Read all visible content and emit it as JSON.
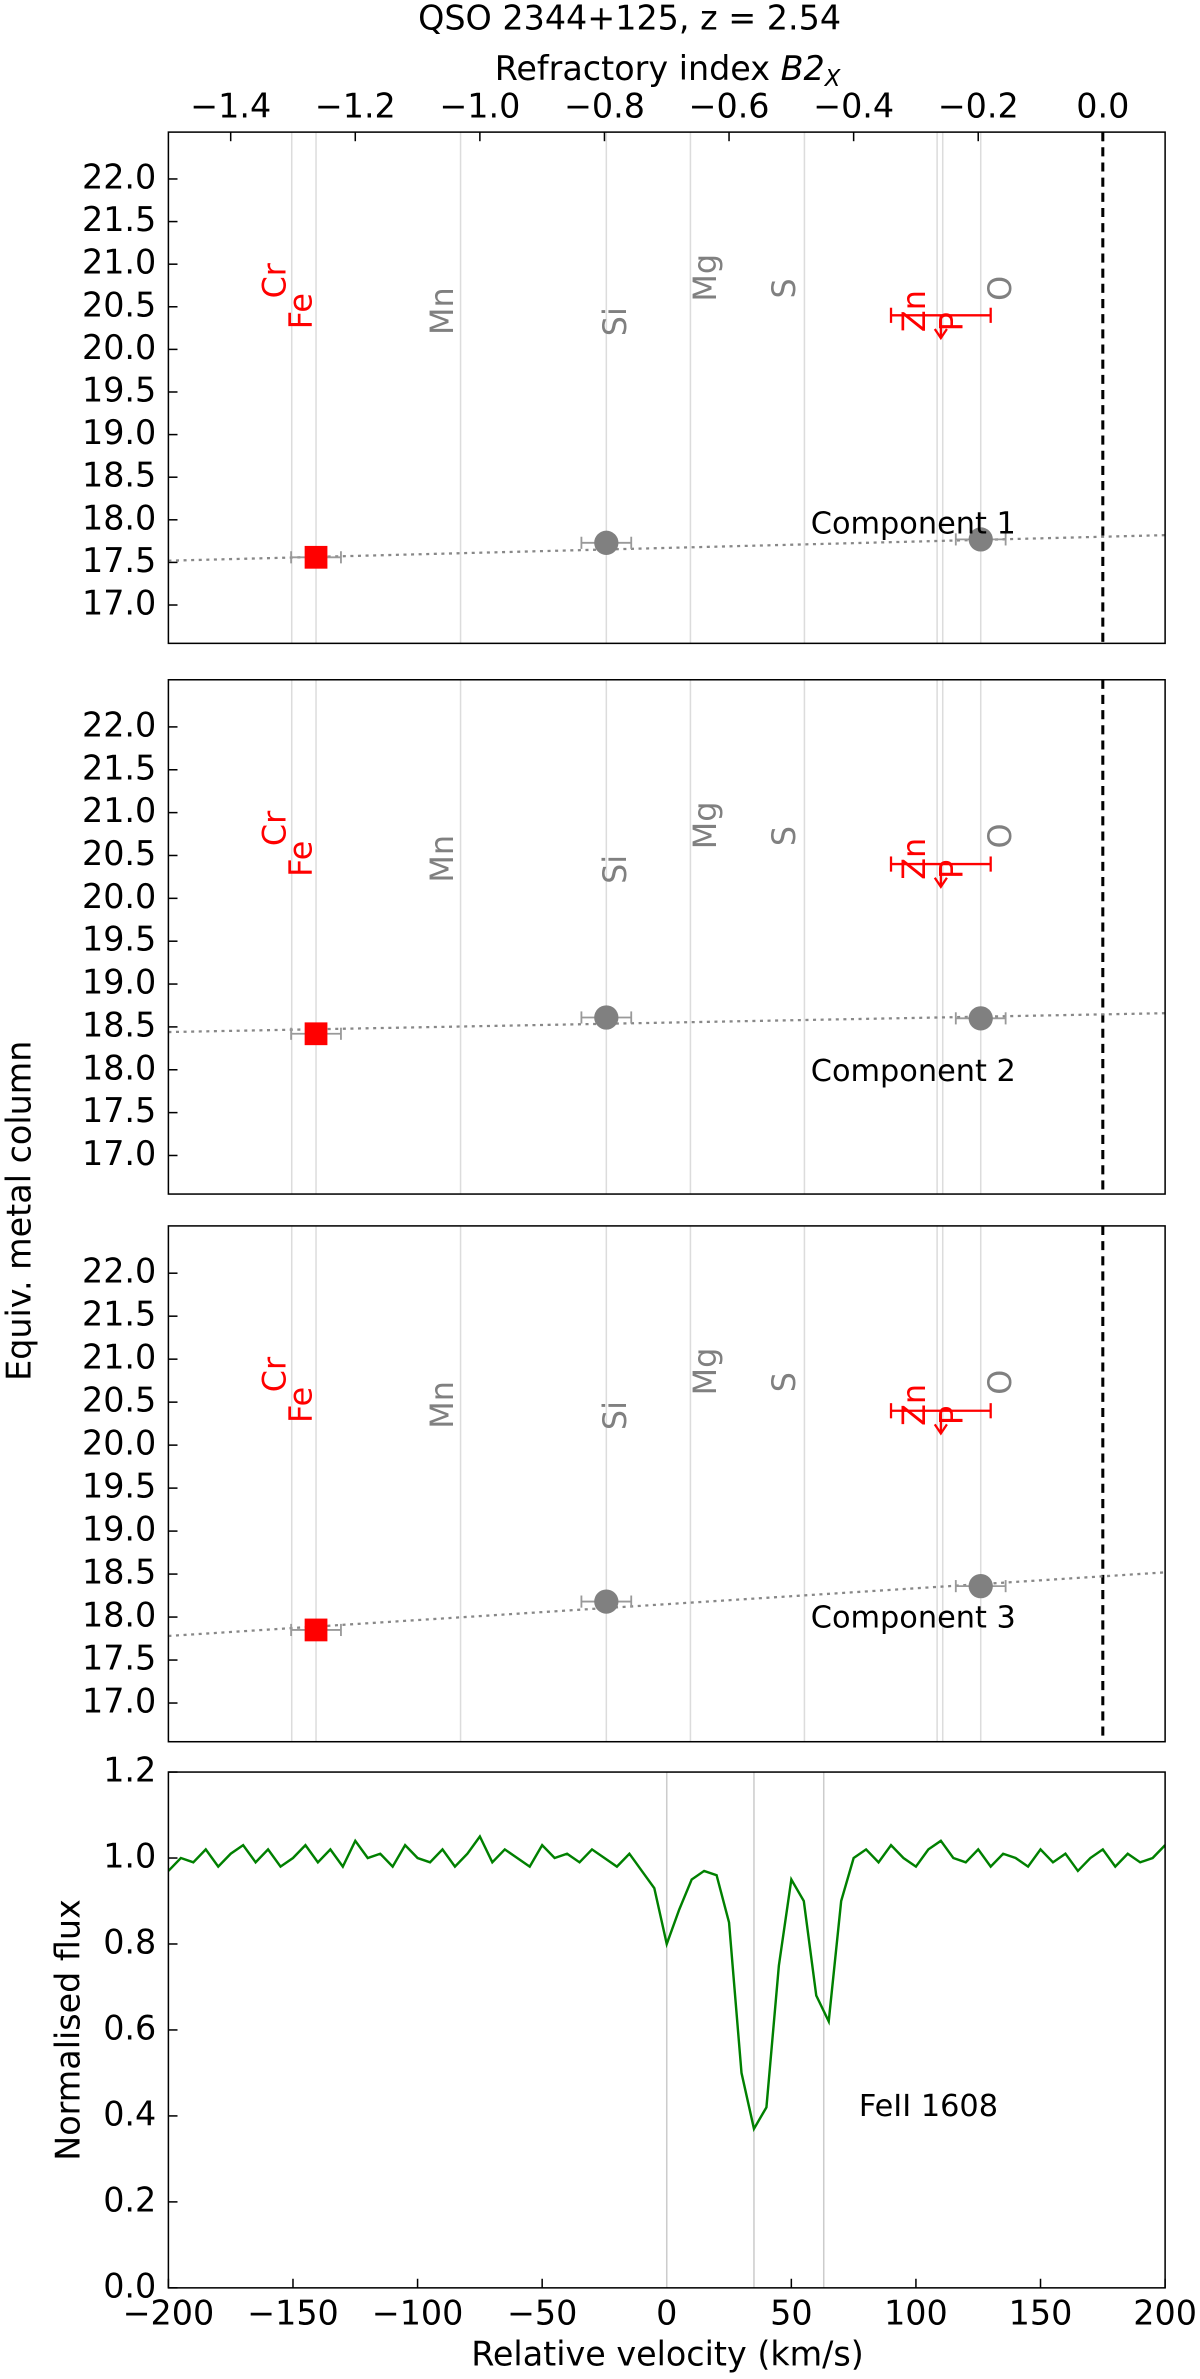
{
  "chart_data": [
    {
      "type": "scatter",
      "title": "QSO 2344+125, z = 2.54",
      "xlabel": [
        "Refractory index ",
        "B2",
        "X"
      ],
      "xlim": [
        -1.5,
        0.1
      ],
      "xticks": [
        {
          "value": -1.4,
          "label": "−1.4"
        },
        {
          "value": -1.2,
          "label": "−1.2"
        },
        {
          "value": -1.0,
          "label": "−1.0"
        },
        {
          "value": -0.8,
          "label": "−0.8"
        },
        {
          "value": -0.6,
          "label": "−0.6"
        },
        {
          "value": -0.4,
          "label": "−0.4"
        },
        {
          "value": -0.2,
          "label": "−0.2"
        },
        {
          "value": 0,
          "label": "0.0"
        }
      ],
      "ylim": [
        16.55,
        22.55
      ],
      "yticks": [
        {
          "value": 17,
          "label": "17.0"
        },
        {
          "value": 17.5,
          "label": "17.5"
        },
        {
          "value": 18,
          "label": "18.0"
        },
        {
          "value": 18.5,
          "label": "18.5"
        },
        {
          "value": 19,
          "label": "19.0"
        },
        {
          "value": 19.5,
          "label": "19.5"
        },
        {
          "value": 20,
          "label": "20.0"
        },
        {
          "value": 20.5,
          "label": "20.5"
        },
        {
          "value": 21,
          "label": "21.0"
        },
        {
          "value": 21.5,
          "label": "21.5"
        },
        {
          "value": 22,
          "label": "22.0"
        }
      ],
      "elements": {
        "names": [
          "Cr",
          "Fe",
          "Mn",
          "Si",
          "Mg",
          "S",
          "Zn",
          "P",
          "O"
        ],
        "x": [
          -1.302,
          -1.263,
          -1.031,
          -0.797,
          -0.662,
          -0.479,
          -0.266,
          -0.257,
          -0.196
        ],
        "colors": [
          "#ff0000",
          "#ff0000",
          "#808080",
          "#808080",
          "#808080",
          "#808080",
          "#ff0000",
          "#ff0000",
          "#808080"
        ]
      },
      "refline": 0,
      "x": [
        -1.263,
        -0.797,
        -0.196
      ],
      "values": [
        17.56,
        17.73,
        17.77
      ],
      "xerr": [
        0.04,
        0.04,
        0.04
      ],
      "markers": [
        "square",
        "circle",
        "circle"
      ],
      "colors": [
        "#ff0000",
        "#808080",
        "#808080"
      ],
      "fit": {
        "x": [
          -1.5,
          0.1
        ],
        "values": [
          17.52,
          17.82
        ]
      },
      "limit": {
        "x": -0.26,
        "value": 20.4,
        "xerr": 0.08,
        "color": "#ff0000"
      },
      "annotation": "Component 1"
    },
    {
      "type": "scatter",
      "ylabel": "Equiv. metal column",
      "xlim": [
        -1.5,
        0.1
      ],
      "ylim": [
        16.55,
        22.55
      ],
      "yticks": [
        {
          "value": 17,
          "label": "17.0"
        },
        {
          "value": 17.5,
          "label": "17.5"
        },
        {
          "value": 18,
          "label": "18.0"
        },
        {
          "value": 18.5,
          "label": "18.5"
        },
        {
          "value": 19,
          "label": "19.0"
        },
        {
          "value": 19.5,
          "label": "19.5"
        },
        {
          "value": 20,
          "label": "20.0"
        },
        {
          "value": 20.5,
          "label": "20.5"
        },
        {
          "value": 21,
          "label": "21.0"
        },
        {
          "value": 21.5,
          "label": "21.5"
        },
        {
          "value": 22,
          "label": "22.0"
        }
      ],
      "refline": 0,
      "x": [
        -1.263,
        -0.797,
        -0.196
      ],
      "values": [
        18.42,
        18.61,
        18.6
      ],
      "xerr": [
        0.04,
        0.04,
        0.04
      ],
      "markers": [
        "square",
        "circle",
        "circle"
      ],
      "colors": [
        "#ff0000",
        "#808080",
        "#808080"
      ],
      "fit": {
        "x": [
          -1.5,
          0.1
        ],
        "values": [
          18.44,
          18.66
        ]
      },
      "limit": {
        "x": -0.26,
        "value": 20.4,
        "xerr": 0.08,
        "color": "#ff0000"
      },
      "annotation": "Component 2"
    },
    {
      "type": "scatter",
      "xlim": [
        -1.5,
        0.1
      ],
      "ylim": [
        16.55,
        22.55
      ],
      "yticks": [
        {
          "value": 17,
          "label": "17.0"
        },
        {
          "value": 17.5,
          "label": "17.5"
        },
        {
          "value": 18,
          "label": "18.0"
        },
        {
          "value": 18.5,
          "label": "18.5"
        },
        {
          "value": 19,
          "label": "19.0"
        },
        {
          "value": 19.5,
          "label": "19.5"
        },
        {
          "value": 20,
          "label": "20.0"
        },
        {
          "value": 20.5,
          "label": "20.5"
        },
        {
          "value": 21,
          "label": "21.0"
        },
        {
          "value": 21.5,
          "label": "21.5"
        },
        {
          "value": 22,
          "label": "22.0"
        }
      ],
      "refline": 0,
      "x": [
        -1.263,
        -0.797,
        -0.196
      ],
      "values": [
        17.85,
        18.18,
        18.36
      ],
      "xerr": [
        0.04,
        0.04,
        0.04
      ],
      "markers": [
        "square",
        "circle",
        "circle"
      ],
      "colors": [
        "#ff0000",
        "#808080",
        "#808080"
      ],
      "fit": {
        "x": [
          -1.5,
          0.1
        ],
        "values": [
          17.78,
          18.52
        ]
      },
      "limit": {
        "x": -0.26,
        "value": 20.4,
        "xerr": 0.08,
        "color": "#ff0000"
      },
      "annotation": "Component 3"
    },
    {
      "type": "line",
      "xlabel": "Relative velocity (km/s)",
      "ylabel": "Normalised flux",
      "annotation": "FeII 1608",
      "color": "#008000",
      "xlim": [
        -200,
        200
      ],
      "xticks": [
        {
          "value": -200,
          "label": "−200"
        },
        {
          "value": -150,
          "label": "−150"
        },
        {
          "value": -100,
          "label": "−100"
        },
        {
          "value": -50,
          "label": "−50"
        },
        0,
        50,
        100,
        150,
        200
      ],
      "ylim": [
        0,
        1.2
      ],
      "yticks": [
        {
          "value": 0,
          "label": "0.0"
        },
        {
          "value": 0.2,
          "label": "0.2"
        },
        {
          "value": 0.4,
          "label": "0.4"
        },
        {
          "value": 0.6,
          "label": "0.6"
        },
        {
          "value": 0.8,
          "label": "0.8"
        },
        {
          "value": 1.0,
          "label": "1.0"
        },
        {
          "value": 1.2,
          "label": "1.2"
        }
      ],
      "markers": [
        0,
        35,
        63
      ],
      "x": [
        -200,
        -195,
        -190,
        -185,
        -180,
        -175,
        -170,
        -165,
        -160,
        -155,
        -150,
        -145,
        -140,
        -135,
        -130,
        -125,
        -120,
        -115,
        -110,
        -105,
        -100,
        -95,
        -90,
        -85,
        -80,
        -75,
        -70,
        -65,
        -60,
        -55,
        -50,
        -45,
        -40,
        -35,
        -30,
        -25,
        -20,
        -15,
        -10,
        -5,
        0,
        5,
        10,
        15,
        20,
        25,
        30,
        35,
        40,
        45,
        50,
        55,
        60,
        65,
        70,
        75,
        80,
        85,
        90,
        95,
        100,
        105,
        110,
        115,
        120,
        125,
        130,
        135,
        140,
        145,
        150,
        155,
        160,
        165,
        170,
        175,
        180,
        185,
        190,
        195,
        200
      ],
      "values": [
        0.97,
        1.0,
        0.99,
        1.02,
        0.98,
        1.01,
        1.03,
        0.99,
        1.02,
        0.98,
        1.0,
        1.03,
        0.99,
        1.02,
        0.98,
        1.04,
        1.0,
        1.01,
        0.98,
        1.03,
        1.0,
        0.99,
        1.02,
        0.98,
        1.01,
        1.05,
        0.99,
        1.02,
        1.0,
        0.98,
        1.03,
        1.0,
        1.01,
        0.99,
        1.02,
        1.0,
        0.98,
        1.01,
        0.97,
        0.93,
        0.8,
        0.88,
        0.95,
        0.97,
        0.96,
        0.85,
        0.5,
        0.37,
        0.42,
        0.75,
        0.95,
        0.9,
        0.68,
        0.62,
        0.9,
        1.0,
        1.02,
        0.99,
        1.03,
        1.0,
        0.98,
        1.02,
        1.04,
        1.0,
        0.99,
        1.02,
        0.98,
        1.01,
        1.0,
        0.98,
        1.02,
        0.99,
        1.01,
        0.97,
        1.0,
        1.02,
        0.98,
        1.01,
        0.99,
        1.0,
        1.03
      ]
    }
  ]
}
